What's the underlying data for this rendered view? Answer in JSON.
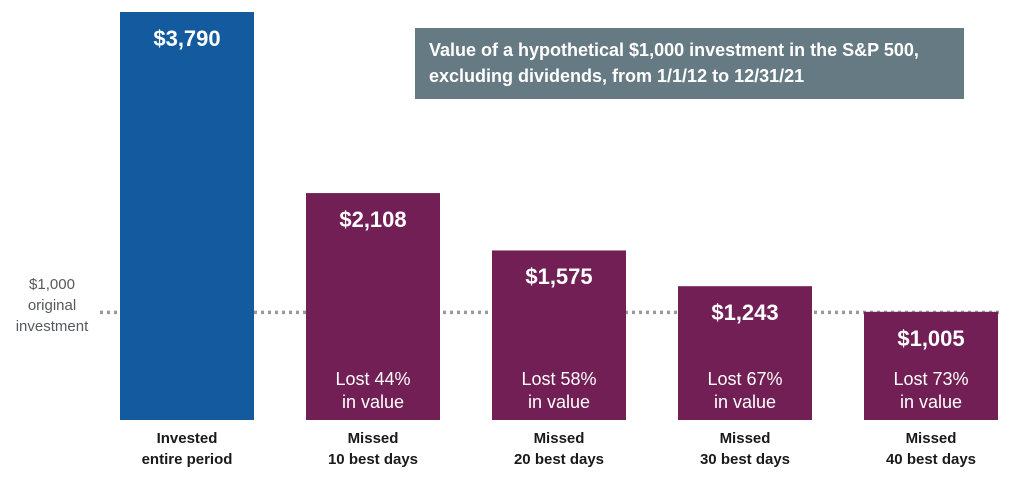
{
  "chart_data": {
    "type": "bar",
    "title": "Value of a hypothetical $1,000 investment in the S&P 500, excluding dividends, from 1/1/12 to 12/31/21",
    "title_lines": [
      "Value of a hypothetical $1,000 investment in the S&P 500,",
      "excluding dividends, from 1/1/12 to 12/31/21"
    ],
    "categories": [
      [
        "Invested",
        "entire period"
      ],
      [
        "Missed",
        "10 best days"
      ],
      [
        "Missed",
        "20 best days"
      ],
      [
        "Missed",
        "30 best days"
      ],
      [
        "Missed",
        "40 best days"
      ]
    ],
    "values": [
      3790,
      2108,
      1575,
      1243,
      1005
    ],
    "value_labels": [
      "$3,790",
      "$2,108",
      "$1,575",
      "$1,243",
      "$1,005"
    ],
    "loss_labels": [
      null,
      [
        "Lost 44%",
        "in value"
      ],
      [
        "Lost 58%",
        "in value"
      ],
      [
        "Lost 67%",
        "in value"
      ],
      [
        "Lost 73%",
        "in value"
      ]
    ],
    "bar_colors": [
      "#135a9e",
      "#721f55",
      "#721f55",
      "#721f55",
      "#721f55"
    ],
    "reference_line": {
      "value": 1000,
      "label_lines": [
        "$1,000",
        "original",
        "investment"
      ],
      "color": "#9a9a9a"
    },
    "title_box_color": "#667a84",
    "ylim": [
      0,
      3790
    ],
    "xlabel": "",
    "ylabel": "",
    "grid": false
  }
}
